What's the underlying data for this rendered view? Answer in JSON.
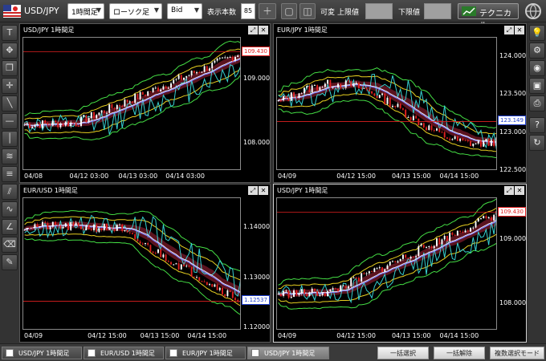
{
  "toolbar": {
    "symbol": "USD/JPY",
    "timeframe": "1時間足",
    "chart_type": "ローソク足",
    "price_type": "Bid",
    "display_count_label": "表示本数",
    "display_count_value": "85",
    "variable_label": "可変",
    "upper_limit_label": "上限値",
    "lower_limit_label": "下限値",
    "technical_label": "テクニカル"
  },
  "colors": {
    "candle_up": "#ffffff",
    "candle_down": "#e02020",
    "band_outer": "#44dd44",
    "band_inner": "#e8d020",
    "ichimoku": "#36d0d0",
    "cloud": "#7a1a2a",
    "ma": "#8080ff",
    "price_line": "#e02020"
  },
  "charts": [
    {
      "title": "USD/JPY 1時間足",
      "price_tag": "109.430",
      "price_tag_color": "red",
      "y_labels": [
        {
          "v": 109.0,
          "t": "109.000"
        },
        {
          "v": 108.0,
          "t": "108.000"
        }
      ],
      "y_range": [
        107.58,
        109.65
      ],
      "x_labels": [
        "04/08",
        "04/12 03:00",
        "04/13 03:00",
        "04/14 03:00"
      ],
      "x_pos": [
        0.0,
        0.25,
        0.52,
        0.78
      ],
      "trend": "up",
      "start": 108.3,
      "end": 109.43,
      "seed": 7
    },
    {
      "title": "EUR/JPY 1時間足",
      "price_tag": "123.149",
      "price_tag_color": "blue",
      "y_labels": [
        {
          "v": 124.0,
          "t": "124.000"
        },
        {
          "v": 123.5,
          "t": "123.500"
        },
        {
          "v": 123.0,
          "t": "123.000"
        },
        {
          "v": 122.5,
          "t": "122.500"
        }
      ],
      "y_range": [
        122.5,
        124.25
      ],
      "x_labels": [
        "04/09",
        "04/12 15:00",
        "04/13 15:00",
        "04/14 15:00"
      ],
      "x_pos": [
        0.0,
        0.32,
        0.62,
        0.88
      ],
      "trend": "hump",
      "start": 123.4,
      "end": 123.149,
      "seed": 13
    },
    {
      "title": "EUR/USD 1時間足",
      "price_tag": "1.12537",
      "price_tag_color": "blue",
      "y_labels": [
        {
          "v": 1.14,
          "t": "1.14000"
        },
        {
          "v": 1.13,
          "t": "1.13000"
        },
        {
          "v": 1.12,
          "t": "1.12000"
        }
      ],
      "y_range": [
        1.1195,
        1.146
      ],
      "x_labels": [
        "04/09",
        "04/12 15:00",
        "04/13 15:00",
        "04/14 15:00"
      ],
      "x_pos": [
        0.0,
        0.35,
        0.64,
        0.9
      ],
      "trend": "down",
      "start": 1.1405,
      "end": 1.12537,
      "seed": 21
    },
    {
      "title": "USD/JPY 1時間足",
      "price_tag": "109.430",
      "price_tag_color": "red",
      "y_labels": [
        {
          "v": 109.0,
          "t": "109.000"
        },
        {
          "v": 108.0,
          "t": "108.000"
        }
      ],
      "y_range": [
        107.58,
        109.65
      ],
      "x_labels": [
        "04/09",
        "04/12 15:00",
        "04/13 15:00",
        "04/14 15:00"
      ],
      "x_pos": [
        0.0,
        0.32,
        0.62,
        0.88
      ],
      "trend": "up",
      "start": 108.15,
      "end": 109.43,
      "seed": 33
    }
  ],
  "bottom": {
    "tabs": [
      "USD/JPY 1時間足",
      "EUR/USD 1時間足",
      "EUR/JPY 1時間足",
      "USD/JPY 1時間足"
    ],
    "select_all": "一括選択",
    "deselect_all": "一括解除",
    "multi_select": "複数選択モード"
  }
}
